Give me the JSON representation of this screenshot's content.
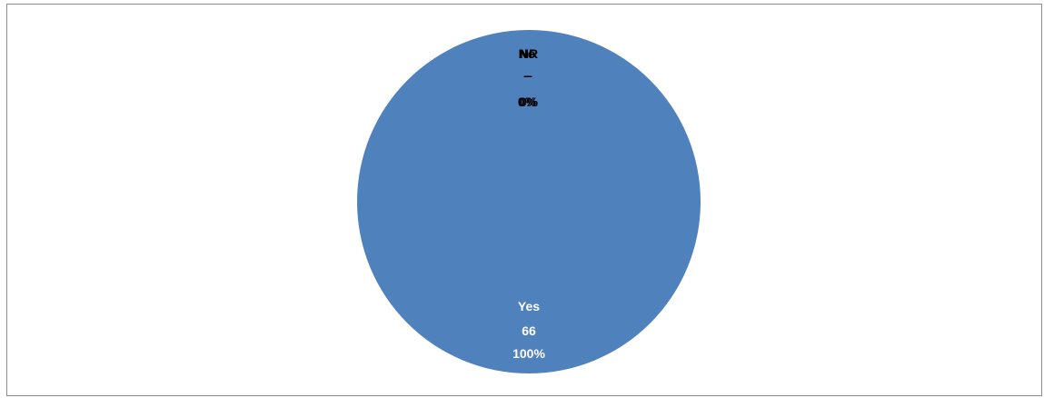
{
  "chart_data": {
    "type": "pie",
    "categories": [
      "Yes",
      "No",
      "NR"
    ],
    "values": [
      66,
      0,
      0
    ],
    "percents": [
      "100%",
      "0%",
      "0%"
    ],
    "colors": [
      "#4F81BD",
      "#C0504D",
      "#9BBB59"
    ],
    "title": "",
    "legend": "none",
    "data_labels": {
      "yes": {
        "category": "Yes",
        "value": "66",
        "percent": "100%"
      },
      "no": {
        "category": "No",
        "value": "–",
        "percent": "0%"
      },
      "nr": {
        "category": "NR",
        "value": "–",
        "percent": "0%"
      }
    }
  }
}
